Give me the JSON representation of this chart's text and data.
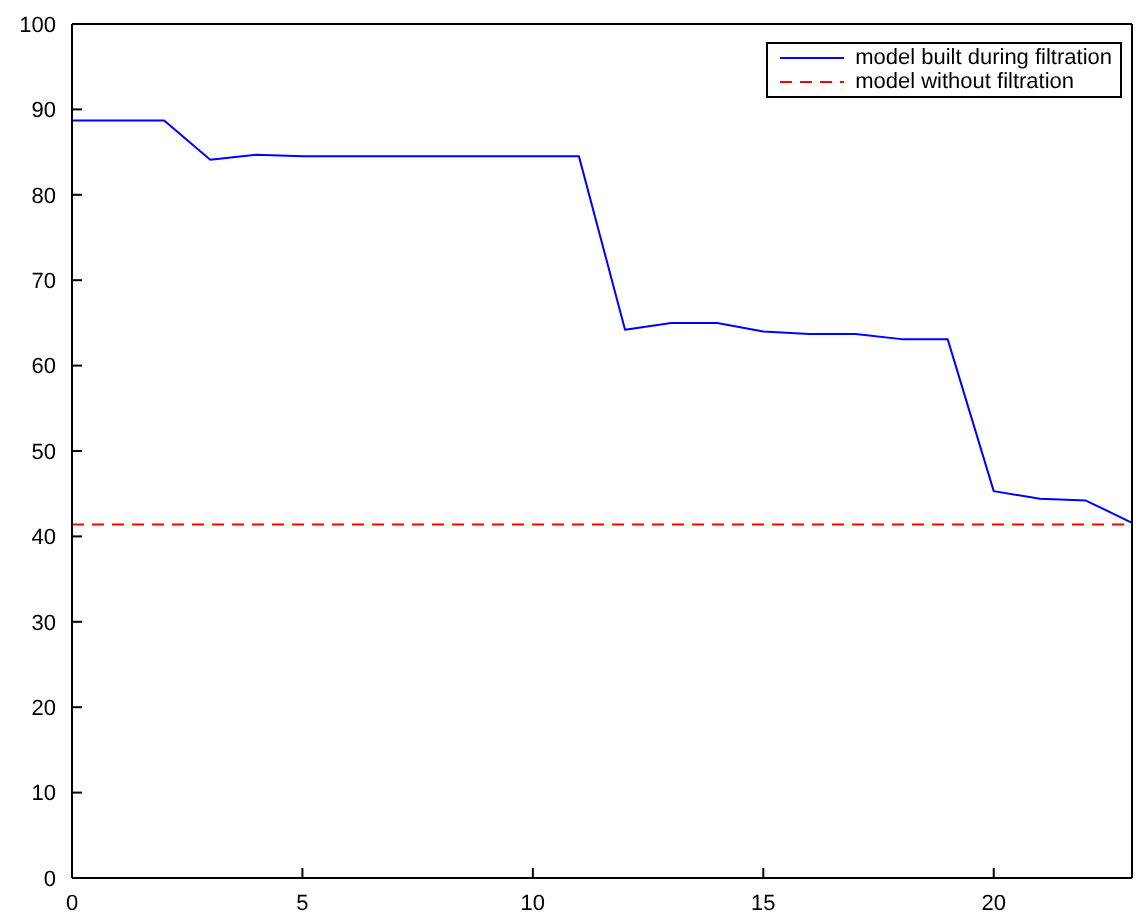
{
  "chart_data": {
    "type": "line",
    "xlim": [
      0,
      23
    ],
    "xticks": [
      0,
      5,
      10,
      15,
      20
    ],
    "ylim": [
      0,
      100
    ],
    "yticks": [
      0,
      10,
      20,
      30,
      40,
      50,
      60,
      70,
      80,
      90,
      100
    ],
    "grid": false,
    "legend": "top right",
    "marker": "none",
    "series": [
      {
        "name": "model built during filtration",
        "color": "#0000ff",
        "line_style": "solid",
        "x": [
          0,
          1,
          2,
          3,
          4,
          5,
          6,
          7,
          8,
          9,
          10,
          11,
          12,
          13,
          14,
          15,
          16,
          17,
          18,
          19,
          20,
          21,
          22,
          23
        ],
        "values": [
          88.7,
          88.7,
          88.7,
          84.1,
          84.7,
          84.5,
          84.5,
          84.5,
          84.5,
          84.5,
          84.5,
          84.5,
          64.2,
          65,
          65,
          64,
          63.7,
          63.7,
          63.1,
          63.1,
          45.3,
          44.4,
          44.2,
          41.6
        ]
      },
      {
        "name": "model without filtration",
        "color": "#ff0000",
        "line_style": "dashed",
        "x": [
          0,
          23
        ],
        "values": [
          41.4,
          41.4
        ]
      }
    ]
  }
}
